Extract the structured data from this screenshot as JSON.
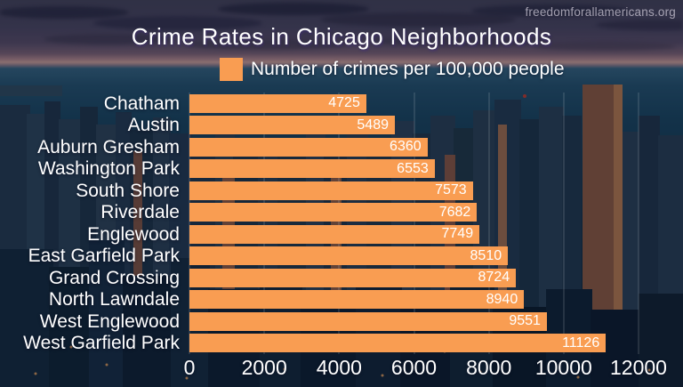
{
  "page": {
    "watermark": "freedomforallamericans.org"
  },
  "title": "Crime Rates in Chicago Neighborhoods",
  "legend": {
    "label": "Number of crimes per 100,000 people",
    "swatch_color": "#f99d52"
  },
  "chart_data": {
    "type": "bar",
    "orientation": "horizontal",
    "title": "Crime Rates in Chicago Neighborhoods",
    "legend_entries": [
      "Number of crimes per 100,000 people"
    ],
    "legend_position": "top",
    "categories": [
      "Chatham",
      "Austin",
      "Auburn Gresham",
      "Washington Park",
      "South Shore",
      "Riverdale",
      "Englewood",
      "East Garfield Park",
      "Grand Crossing",
      "North Lawndale",
      "West Englewood",
      "West Garfield Park"
    ],
    "values": [
      4725,
      5489,
      6360,
      6553,
      7573,
      7682,
      7749,
      8510,
      8724,
      8940,
      9551,
      11126
    ],
    "xlim": [
      0,
      12000
    ],
    "x_ticks": [
      0,
      2000,
      4000,
      6000,
      8000,
      10000,
      12000
    ],
    "bar_color": "#f99d52",
    "value_label_color": "#ffffff",
    "value_labels": "inside-end",
    "grid": "vertical-faint"
  }
}
